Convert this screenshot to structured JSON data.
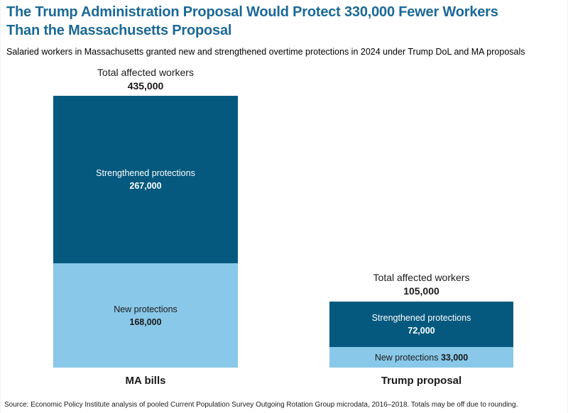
{
  "colors": {
    "title": "#1B6996",
    "strengthened": "#05597E",
    "new_protections": "#89C8E8",
    "label_on_dark": "#FFFFFF",
    "label_on_light": "#1A1A1A"
  },
  "header": {
    "title_line1": "The Trump Administration Proposal Would Protect 330,000 Fewer Workers",
    "title_line2": "Than the Massachusetts Proposal",
    "subtitle": "Salaried workers in Massachusetts granted new and strengthened overtime protections in 2024 under Trump DoL and MA proposals"
  },
  "chart": {
    "bars": [
      {
        "total_label": "Total affected workers",
        "total_value": "435,000",
        "category": "MA bills",
        "segments": {
          "strengthened_label": "Strengthened protections",
          "strengthened_value": "267,000",
          "new_label": "New protections",
          "new_value": "168,000"
        }
      },
      {
        "total_label": "Total affected workers",
        "total_value": "105,000",
        "category": "Trump proposal",
        "segments": {
          "strengthened_label": "Strengthened protections",
          "strengthened_value": "72,000",
          "new_label": "New protections",
          "new_value": "33,000"
        }
      }
    ]
  },
  "chart_data": {
    "type": "bar",
    "stacked": true,
    "title": "The Trump Administration Proposal Would Protect 330,000 Fewer Workers Than the Massachusetts Proposal",
    "subtitle": "Salaried workers in Massachusetts granted new and strengthened overtime protections in 2024 under Trump DoL and MA proposals",
    "categories": [
      "MA bills",
      "Trump proposal"
    ],
    "series": [
      {
        "name": "Strengthened protections",
        "values": [
          267000,
          72000
        ],
        "color": "#05597E"
      },
      {
        "name": "New protections",
        "values": [
          168000,
          33000
        ],
        "color": "#89C8E8"
      }
    ],
    "totals": {
      "label": "Total affected workers",
      "values": [
        435000,
        105000
      ]
    },
    "ylabel": "",
    "xlabel": "",
    "ylim": [
      0,
      435000
    ],
    "grid": false,
    "legend_position": "none (series labeled inside bar segments)",
    "value_labels": "inside segments and totals above bars",
    "source": "Source: Economic Policy Institute analysis of pooled Current Population Survey Outgoing Rotation Group microdata, 2016–2018. Totals may be off due to rounding."
  },
  "footer": {
    "source": "Source: Economic Policy Institute analysis of pooled Current Population Survey Outgoing Rotation Group microdata, 2016–2018. Totals may be off due to rounding."
  }
}
